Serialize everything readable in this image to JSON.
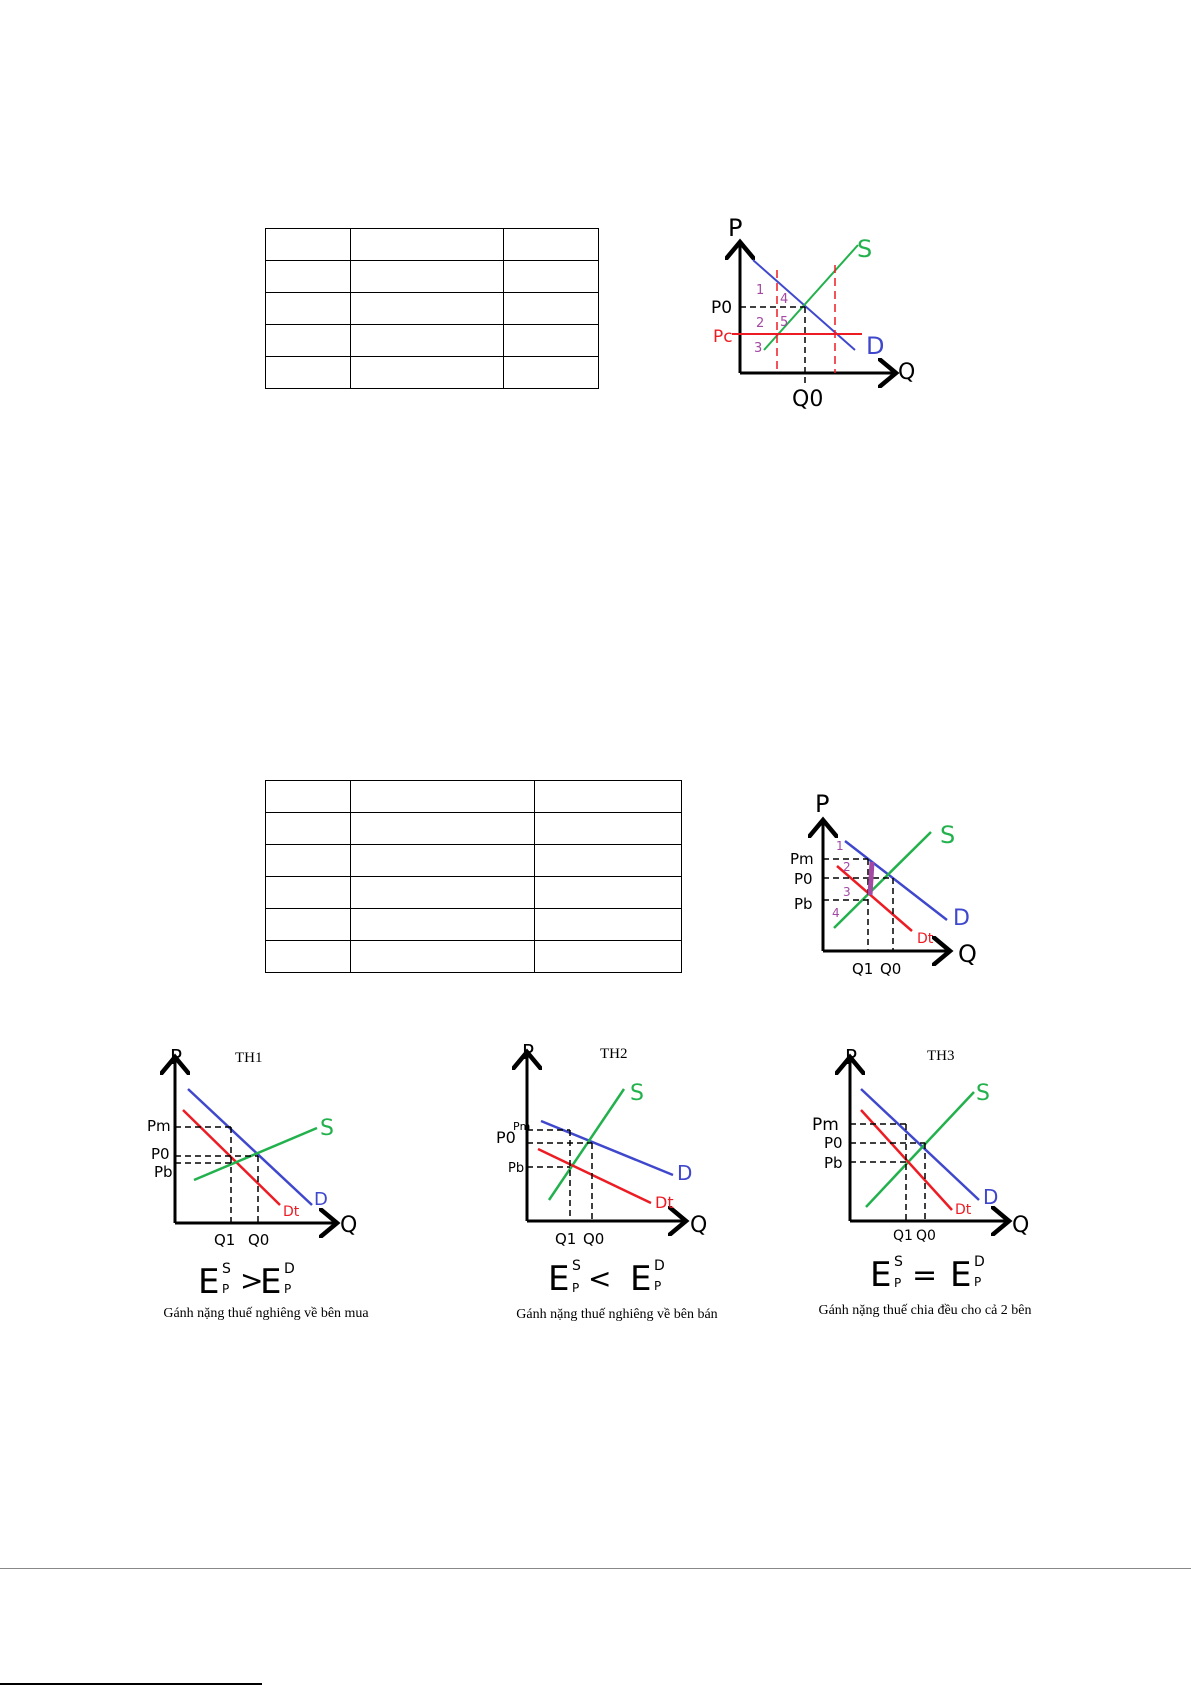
{
  "colors": {
    "demand": "#3f48cc",
    "supply": "#22b14c",
    "tax_demand": "#ed1c24",
    "price_control": "#ed1c24",
    "regions": "#a349a4"
  },
  "table1": {
    "rows": 5,
    "cols": 3
  },
  "table2": {
    "rows": 6,
    "cols": 3
  },
  "diagram1": {
    "p_axis": "P",
    "q_axis": "Q",
    "supply": "S",
    "demand": "D",
    "p0": "P0",
    "pc": "Pc",
    "q0": "Q0",
    "regions": [
      "1",
      "2",
      "3",
      "4",
      "5"
    ]
  },
  "diagram2": {
    "p_axis": "P",
    "q_axis": "Q",
    "supply": "S",
    "demand": "D",
    "tax_demand": "Dt",
    "pm": "Pm",
    "p0": "P0",
    "pb": "Pb",
    "q1": "Q1",
    "q0": "Q0",
    "regions": [
      "1",
      "2",
      "3",
      "4"
    ]
  },
  "cases": [
    {
      "title": "TH1",
      "p_axis": "P",
      "q_axis": "Q",
      "supply": "S",
      "demand": "D",
      "tax_demand": "Dt",
      "pm": "Pm",
      "p0": "P0",
      "pb": "Pb",
      "q1": "Q1",
      "q0": "Q0",
      "relation": ">",
      "caption": "Gánh nặng thuế nghiêng về bên mua"
    },
    {
      "title": "TH2",
      "p_axis": "P",
      "q_axis": "Q",
      "supply": "S",
      "demand": "D",
      "tax_demand": "Dt",
      "pm": "Pm",
      "p0": "P0",
      "pb": "Pb",
      "q1": "Q1",
      "q0": "Q0",
      "relation": "<",
      "caption": "Gánh nặng thuế nghiêng về bên bán"
    },
    {
      "title": "TH3",
      "p_axis": "P",
      "q_axis": "Q",
      "supply": "S",
      "demand": "D",
      "tax_demand": "Dt",
      "pm": "Pm",
      "p0": "P0",
      "pb": "Pb",
      "q1": "Q1",
      "q0": "Q0",
      "relation": "=",
      "caption": "Gánh nặng thuế chia đều cho cả 2 bên"
    }
  ],
  "elasticity": {
    "symbol": "E",
    "sup_s": "S",
    "sup_d": "D",
    "sub": "P"
  }
}
